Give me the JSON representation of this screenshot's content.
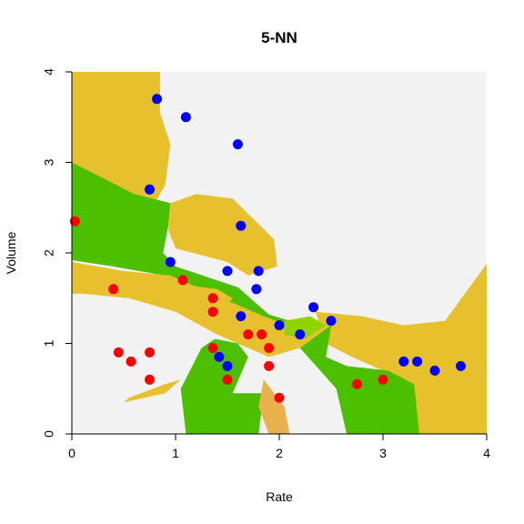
{
  "chart_data": {
    "type": "scatter",
    "title": "5-NN",
    "xlabel": "Rate",
    "ylabel": "Volume",
    "xlim": [
      0,
      4
    ],
    "ylim": [
      0,
      4
    ],
    "xticks": [
      "0",
      "1",
      "2",
      "3",
      "4"
    ],
    "yticks": [
      "0",
      "1",
      "2",
      "3",
      "4"
    ],
    "colors": {
      "red": "#ff0000",
      "blue": "#0000ff",
      "region_gray": "#f2f2f2",
      "region_gold": "#e6c12d",
      "region_green": "#4cbf00",
      "region_lightgreen": "#8fd400",
      "region_tan": "#e9b24c"
    },
    "series": [
      {
        "color": "red",
        "points": [
          [
            0.03,
            2.35
          ],
          [
            0.4,
            1.6
          ],
          [
            0.45,
            0.9
          ],
          [
            0.57,
            0.8
          ],
          [
            0.75,
            0.9
          ],
          [
            0.75,
            0.6
          ],
          [
            1.07,
            1.7
          ],
          [
            1.36,
            1.5
          ],
          [
            1.36,
            1.35
          ],
          [
            1.36,
            0.95
          ],
          [
            1.5,
            0.6
          ],
          [
            1.7,
            1.1
          ],
          [
            1.83,
            1.1
          ],
          [
            1.9,
            0.95
          ],
          [
            1.9,
            0.75
          ],
          [
            2.0,
            0.4
          ],
          [
            2.75,
            0.55
          ],
          [
            3.0,
            0.6
          ]
        ]
      },
      {
        "color": "blue",
        "points": [
          [
            0.82,
            3.7
          ],
          [
            1.1,
            3.5
          ],
          [
            1.6,
            3.2
          ],
          [
            0.75,
            2.7
          ],
          [
            1.63,
            2.3
          ],
          [
            0.95,
            1.9
          ],
          [
            1.5,
            1.8
          ],
          [
            1.8,
            1.8
          ],
          [
            1.78,
            1.6
          ],
          [
            1.63,
            1.3
          ],
          [
            2.0,
            1.2
          ],
          [
            2.2,
            1.1
          ],
          [
            2.33,
            1.4
          ],
          [
            2.5,
            1.25
          ],
          [
            1.42,
            0.85
          ],
          [
            1.5,
            0.75
          ],
          [
            3.2,
            0.8
          ],
          [
            3.33,
            0.8
          ],
          [
            3.5,
            0.7
          ],
          [
            3.75,
            0.75
          ]
        ]
      }
    ],
    "regions": [
      {
        "fill": "region_gold",
        "points": [
          [
            0,
            4
          ],
          [
            0.85,
            4
          ],
          [
            0.85,
            3.55
          ],
          [
            0.95,
            3.2
          ],
          [
            0.9,
            2.75
          ],
          [
            0.8,
            2.55
          ],
          [
            0.3,
            2.55
          ],
          [
            0,
            2.75
          ]
        ]
      },
      {
        "fill": "region_green",
        "points": [
          [
            0,
            3
          ],
          [
            0.6,
            2.65
          ],
          [
            0.95,
            2.55
          ],
          [
            0.93,
            2.3
          ],
          [
            0.88,
            2.0
          ],
          [
            1.0,
            1.85
          ],
          [
            1.6,
            1.62
          ],
          [
            1.9,
            1.32
          ],
          [
            2.1,
            1.25
          ],
          [
            2.4,
            1.25
          ],
          [
            2.2,
            1.1
          ],
          [
            1.75,
            1.3
          ],
          [
            1.5,
            1.45
          ],
          [
            1.25,
            1.6
          ],
          [
            0.9,
            1.75
          ],
          [
            0.4,
            1.85
          ],
          [
            0,
            1.92
          ]
        ]
      },
      {
        "fill": "region_gold",
        "points": [
          [
            0,
            1.9
          ],
          [
            0.5,
            1.8
          ],
          [
            0.95,
            1.75
          ],
          [
            1.25,
            1.6
          ],
          [
            1.55,
            1.45
          ],
          [
            1.85,
            1.3
          ],
          [
            2.2,
            1.15
          ],
          [
            2.55,
            1.2
          ],
          [
            2.8,
            1.25
          ],
          [
            2.5,
            1.05
          ],
          [
            1.9,
            0.85
          ],
          [
            1.4,
            1.1
          ],
          [
            1.0,
            1.35
          ],
          [
            0.55,
            1.5
          ],
          [
            0.1,
            1.55
          ],
          [
            0,
            1.55
          ]
        ]
      },
      {
        "fill": "region_gold",
        "points": [
          [
            0.95,
            2.55
          ],
          [
            1.2,
            2.65
          ],
          [
            1.55,
            2.6
          ],
          [
            1.95,
            2.15
          ],
          [
            1.98,
            1.85
          ],
          [
            1.7,
            1.75
          ],
          [
            1.5,
            1.9
          ],
          [
            1.0,
            2.05
          ],
          [
            0.93,
            2.25
          ]
        ]
      },
      {
        "fill": "region_gold",
        "points": [
          [
            2.35,
            1.35
          ],
          [
            2.8,
            1.3
          ],
          [
            3.2,
            1.2
          ],
          [
            3.6,
            1.25
          ],
          [
            4,
            1.88
          ],
          [
            4,
            0
          ],
          [
            3.35,
            0
          ],
          [
            3.2,
            0.35
          ],
          [
            3.3,
            0.55
          ],
          [
            2.7,
            0.85
          ],
          [
            2.45,
            1.0
          ]
        ]
      },
      {
        "fill": "region_green",
        "points": [
          [
            1.25,
            0.95
          ],
          [
            1.38,
            1.05
          ],
          [
            1.6,
            1.0
          ],
          [
            1.7,
            0.85
          ],
          [
            1.55,
            0.45
          ],
          [
            1.85,
            0.45
          ],
          [
            1.8,
            0
          ],
          [
            1.1,
            0
          ],
          [
            1.05,
            0.5
          ]
        ]
      },
      {
        "fill": "region_green",
        "points": [
          [
            2.5,
            1.2
          ],
          [
            2.45,
            0.85
          ],
          [
            2.65,
            0.75
          ],
          [
            3.05,
            0.7
          ],
          [
            3.3,
            0.55
          ],
          [
            3.35,
            0
          ],
          [
            2.65,
            0
          ],
          [
            2.55,
            0.5
          ],
          [
            2.2,
            0.95
          ]
        ]
      },
      {
        "fill": "region_lightgreen",
        "points": [
          [
            2.05,
            1.25
          ],
          [
            2.3,
            1.3
          ],
          [
            2.45,
            1.2
          ],
          [
            2.25,
            1.05
          ],
          [
            2.05,
            1.1
          ]
        ]
      },
      {
        "fill": "region_gold",
        "points": [
          [
            1.05,
            1.65
          ],
          [
            1.4,
            1.6
          ],
          [
            1.55,
            1.5
          ],
          [
            1.45,
            1.35
          ],
          [
            1.25,
            1.4
          ],
          [
            1.0,
            1.45
          ],
          [
            0.95,
            1.55
          ]
        ]
      },
      {
        "fill": "region_tan",
        "points": [
          [
            1.85,
            0.6
          ],
          [
            2.05,
            0.3
          ],
          [
            2.1,
            0
          ],
          [
            1.9,
            0
          ],
          [
            1.8,
            0.3
          ]
        ]
      },
      {
        "fill": "region_gold",
        "points": [
          [
            0.5,
            0.35
          ],
          [
            0.9,
            0.45
          ],
          [
            1.05,
            0.6
          ],
          [
            0.9,
            0.55
          ],
          [
            0.55,
            0.4
          ]
        ]
      }
    ]
  }
}
